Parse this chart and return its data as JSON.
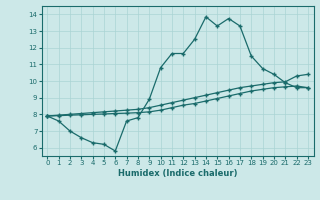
{
  "xlabel": "Humidex (Indice chaleur)",
  "xlim": [
    -0.5,
    23.5
  ],
  "ylim": [
    5.5,
    14.5
  ],
  "xticks": [
    0,
    1,
    2,
    3,
    4,
    5,
    6,
    7,
    8,
    9,
    10,
    11,
    12,
    13,
    14,
    15,
    16,
    17,
    18,
    19,
    20,
    21,
    22,
    23
  ],
  "yticks": [
    6,
    7,
    8,
    9,
    10,
    11,
    12,
    13,
    14
  ],
  "bg_color": "#cce8e8",
  "line_color": "#1a6b6b",
  "grid_color": "#aad4d4",
  "line1_x": [
    0,
    1,
    2,
    3,
    4,
    5,
    6,
    7,
    8,
    9,
    10,
    11,
    12,
    13,
    14,
    15,
    16,
    17,
    18,
    19,
    20,
    21,
    22,
    23
  ],
  "line1_y": [
    7.9,
    7.6,
    7.0,
    6.6,
    6.3,
    6.2,
    5.8,
    7.6,
    7.8,
    8.9,
    10.8,
    11.65,
    11.65,
    12.5,
    13.85,
    13.3,
    13.75,
    13.3,
    11.5,
    10.75,
    10.4,
    9.9,
    9.6,
    9.6
  ],
  "line2_x": [
    0,
    1,
    2,
    3,
    4,
    5,
    6,
    7,
    8,
    9,
    10,
    11,
    12,
    13,
    14,
    15,
    16,
    17,
    18,
    19,
    20,
    21,
    22,
    23
  ],
  "line2_y": [
    7.9,
    7.95,
    8.0,
    8.05,
    8.1,
    8.15,
    8.2,
    8.25,
    8.3,
    8.4,
    8.55,
    8.7,
    8.85,
    9.0,
    9.15,
    9.3,
    9.45,
    9.6,
    9.7,
    9.8,
    9.9,
    9.95,
    10.3,
    10.4
  ],
  "line3_x": [
    0,
    1,
    2,
    3,
    4,
    5,
    6,
    7,
    8,
    9,
    10,
    11,
    12,
    13,
    14,
    15,
    16,
    17,
    18,
    19,
    20,
    21,
    22,
    23
  ],
  "line3_y": [
    7.9,
    7.92,
    7.95,
    7.97,
    8.0,
    8.02,
    8.05,
    8.07,
    8.1,
    8.15,
    8.25,
    8.4,
    8.55,
    8.65,
    8.8,
    8.95,
    9.1,
    9.25,
    9.4,
    9.5,
    9.6,
    9.65,
    9.7,
    9.6
  ]
}
